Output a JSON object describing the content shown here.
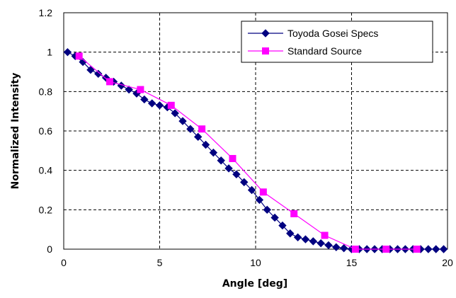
{
  "chart_data": {
    "type": "line",
    "title": "",
    "xlabel": "Angle [deg]",
    "ylabel": "Normalized Intensity",
    "xlim": [
      0,
      20
    ],
    "ylim": [
      0,
      1.2
    ],
    "xticks": [
      0,
      5,
      10,
      15,
      20
    ],
    "yticks": [
      0,
      0.2,
      0.4,
      0.6,
      0.8,
      1,
      1.2
    ],
    "xtick_labels": [
      "0",
      "5",
      "10",
      "15",
      "20"
    ],
    "ytick_labels": [
      "0",
      "0.2",
      "0.4",
      "0.6",
      "0.8",
      "1",
      "1.2"
    ],
    "grid": "dashed, both axes",
    "legend_position": "top-right",
    "series": [
      {
        "name": "Toyoda Gosei Specs",
        "color": "#000080",
        "marker": "diamond",
        "x": [
          0.2,
          0.6,
          1.0,
          1.4,
          1.8,
          2.2,
          2.6,
          3.0,
          3.4,
          3.8,
          4.2,
          4.6,
          5.0,
          5.4,
          5.8,
          6.2,
          6.6,
          7.0,
          7.4,
          7.8,
          8.2,
          8.6,
          9.0,
          9.4,
          9.8,
          10.2,
          10.6,
          11.0,
          11.4,
          11.8,
          12.2,
          12.6,
          13.0,
          13.4,
          13.8,
          14.2,
          14.6,
          15.0,
          15.4,
          15.8,
          16.2,
          16.6,
          17.0,
          17.4,
          17.8,
          18.2,
          18.6,
          19.0,
          19.4,
          19.8
        ],
        "y": [
          1.0,
          0.98,
          0.95,
          0.91,
          0.89,
          0.87,
          0.85,
          0.83,
          0.81,
          0.79,
          0.76,
          0.74,
          0.73,
          0.72,
          0.69,
          0.65,
          0.61,
          0.57,
          0.53,
          0.49,
          0.45,
          0.41,
          0.38,
          0.34,
          0.3,
          0.25,
          0.2,
          0.16,
          0.12,
          0.08,
          0.06,
          0.05,
          0.04,
          0.03,
          0.02,
          0.01,
          0.005,
          0.0,
          0.0,
          0.0,
          0.0,
          0.0,
          0.0,
          0.0,
          0.0,
          0.0,
          0.0,
          0.0,
          0.0,
          0.0
        ]
      },
      {
        "name": "Standard Source",
        "color": "#ff00ff",
        "marker": "square",
        "x": [
          0.8,
          2.4,
          4.0,
          5.6,
          7.2,
          8.8,
          10.4,
          12.0,
          13.6,
          15.2,
          16.8,
          18.4
        ],
        "y": [
          0.98,
          0.85,
          0.81,
          0.73,
          0.61,
          0.46,
          0.29,
          0.18,
          0.07,
          0.0,
          0.0,
          0.0
        ]
      }
    ]
  }
}
